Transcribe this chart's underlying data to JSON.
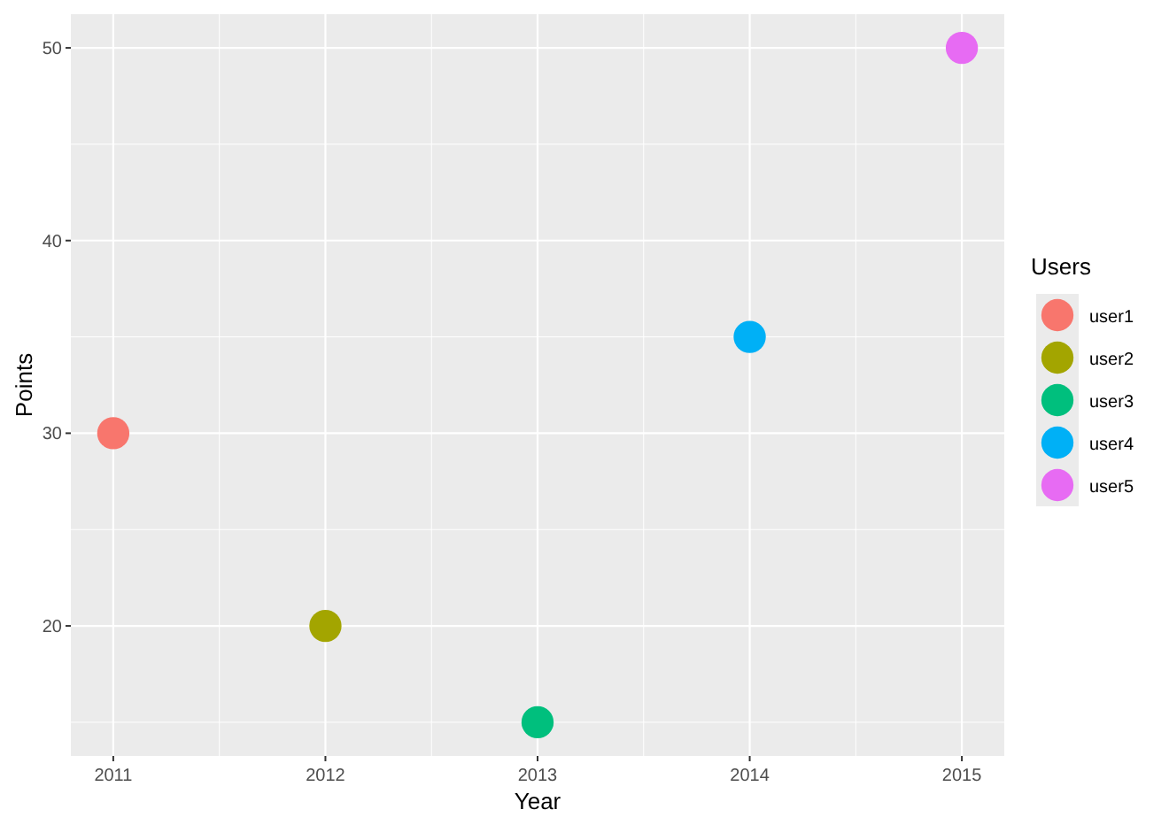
{
  "chart_data": {
    "type": "scatter",
    "xlabel": "Year",
    "ylabel": "Points",
    "legend_title": "Users",
    "xlim": [
      2010.8,
      2015.2
    ],
    "xticks": [
      2011,
      2012,
      2013,
      2014,
      2015
    ],
    "ylim": [
      13.25,
      51.75
    ],
    "yticks": [
      20,
      30,
      40,
      50
    ],
    "grid": true,
    "legend": "right",
    "marker": "circle",
    "series": [
      {
        "name": "user1",
        "color": "#f8766d",
        "x": [
          2011
        ],
        "values": [
          30
        ]
      },
      {
        "name": "user2",
        "color": "#a3a500",
        "x": [
          2012
        ],
        "values": [
          20
        ]
      },
      {
        "name": "user3",
        "color": "#00bf7d",
        "x": [
          2013
        ],
        "values": [
          15
        ]
      },
      {
        "name": "user4",
        "color": "#00b0f6",
        "x": [
          2014
        ],
        "values": [
          35
        ]
      },
      {
        "name": "user5",
        "color": "#e76bf3",
        "x": [
          2015
        ],
        "values": [
          50
        ]
      }
    ]
  }
}
